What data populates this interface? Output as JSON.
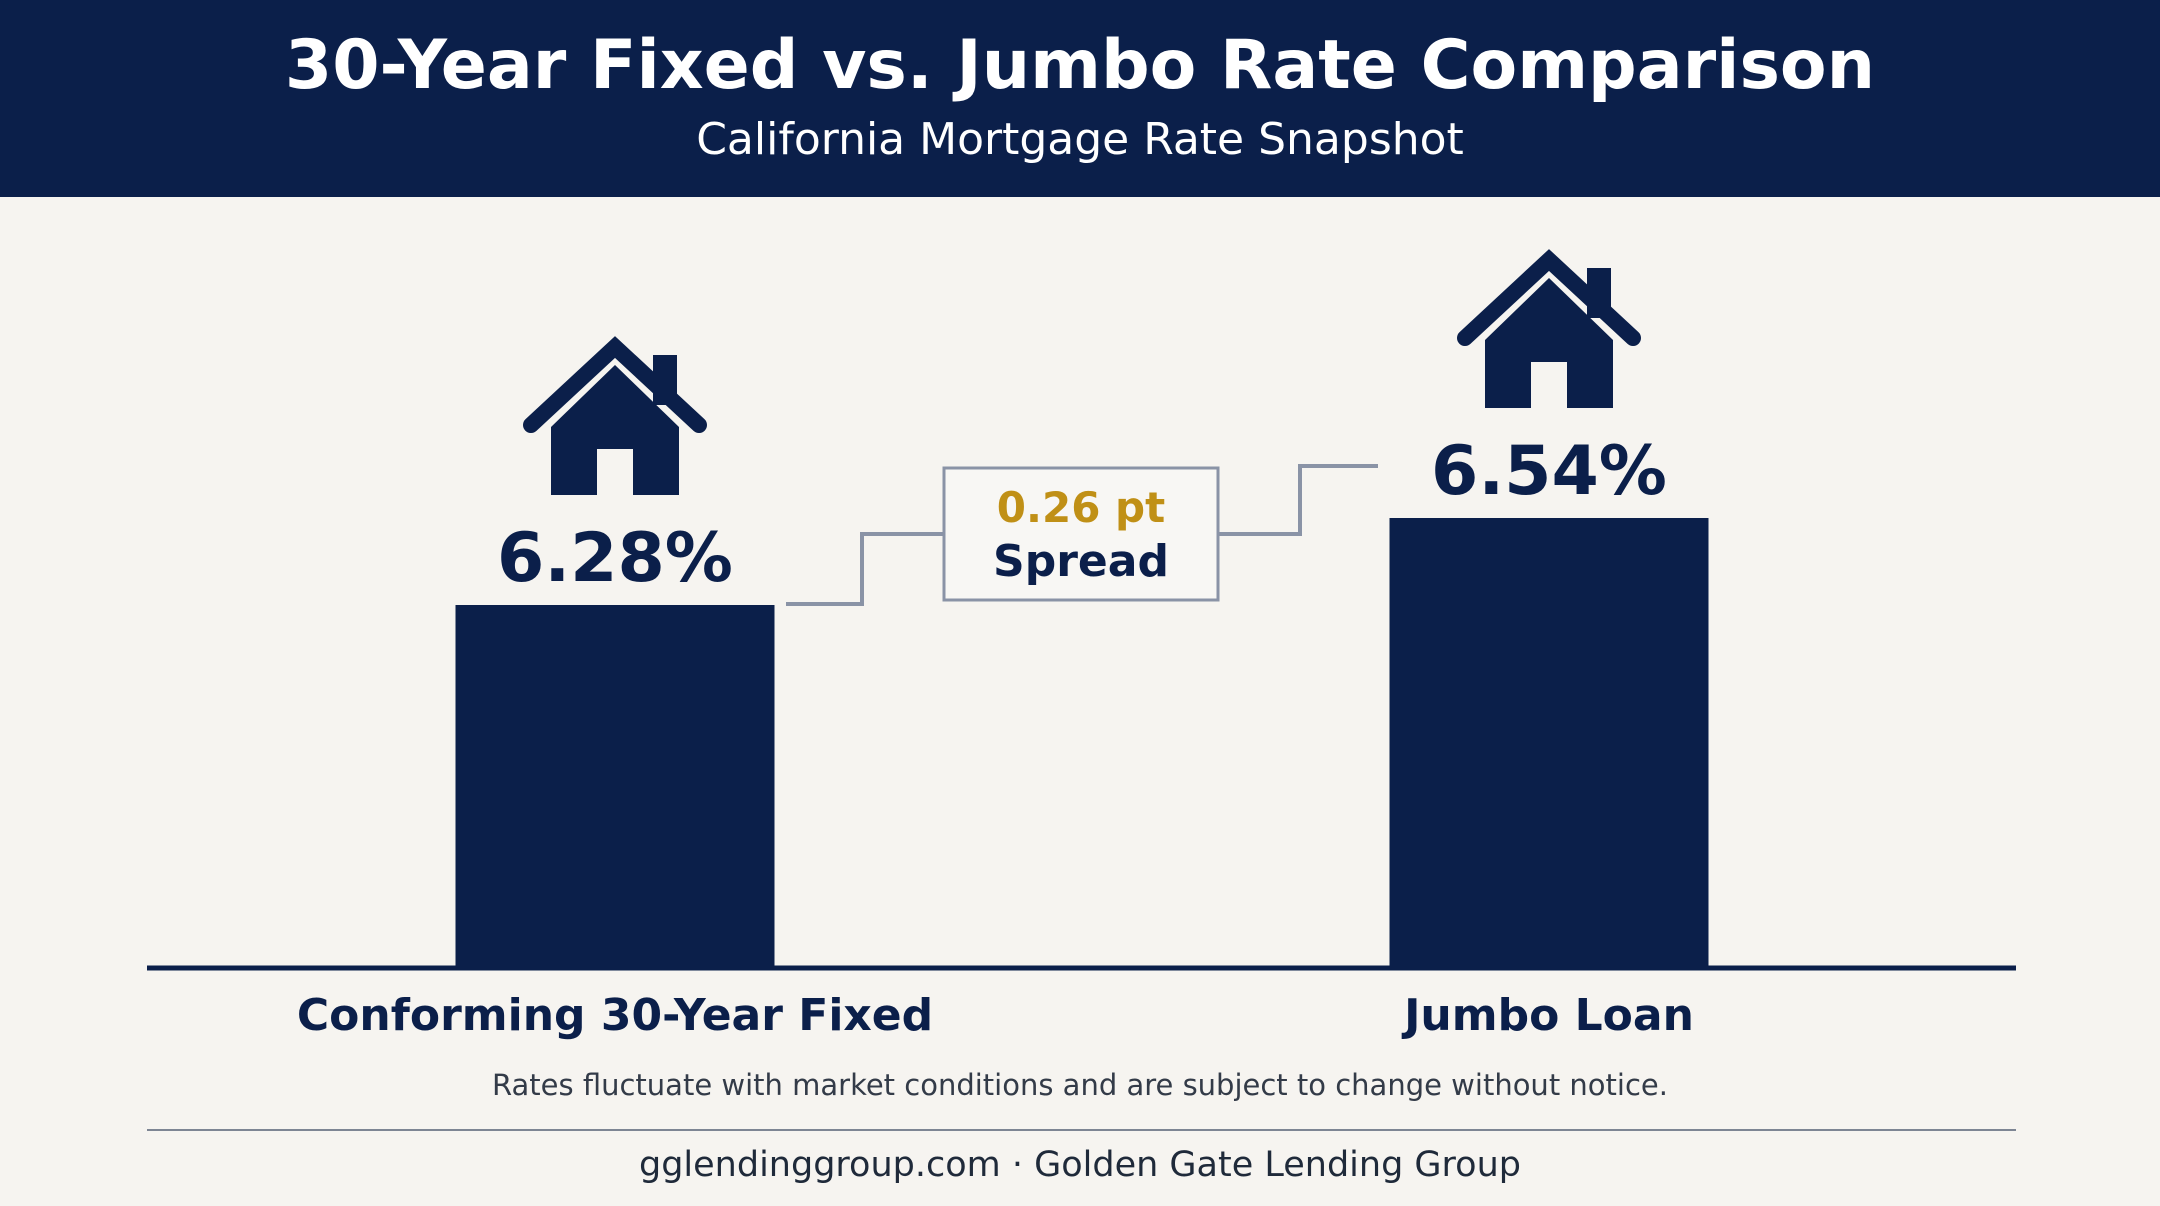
{
  "header": {
    "title": "30-Year Fixed vs. Jumbo Rate Comparison",
    "subtitle": "California Mortgage Rate Snapshot"
  },
  "chart_data": {
    "type": "bar",
    "title": "30-Year Fixed vs. Jumbo Rate Comparison",
    "subtitle": "California Mortgage Rate Snapshot",
    "categories": [
      "Conforming 30-Year Fixed",
      "Jumbo Loan"
    ],
    "values": [
      6.28,
      6.54
    ],
    "value_labels": [
      "6.28%",
      "6.54%"
    ],
    "unit": "%",
    "annotation": {
      "line1": "0.26 pt",
      "line2": "Spread"
    },
    "xlabel": "",
    "ylabel": "",
    "grid": false,
    "icons": [
      "house-icon",
      "house-icon"
    ],
    "colors": {
      "bar": "#0b1f4a",
      "accent": "#c09016",
      "connector": "#8a93a6"
    }
  },
  "disclaimer": "Rates fluctuate with market conditions and are subject to change without notice.",
  "footer": "gglendinggroup.com · Golden Gate Lending Group"
}
